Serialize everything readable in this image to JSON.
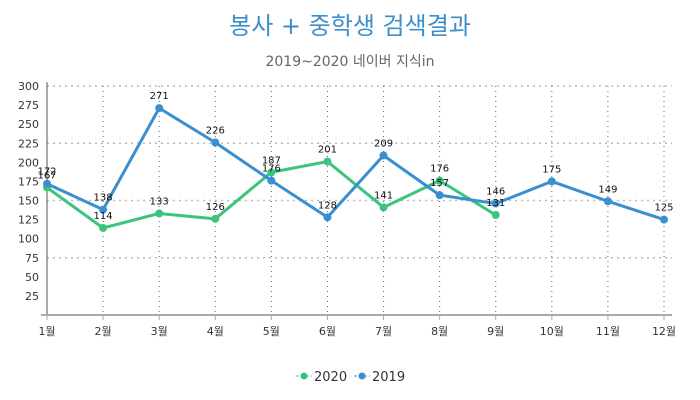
{
  "chart_data": {
    "type": "line",
    "title": "봉사 + 중학생 검색결과",
    "subtitle": "2019~2020 네이버 지식in",
    "xlabel": "",
    "ylabel": "",
    "categories": [
      "1월",
      "2월",
      "3월",
      "4월",
      "5월",
      "6월",
      "7월",
      "8월",
      "9월",
      "10월",
      "11월",
      "12월"
    ],
    "ylim": [
      0,
      300
    ],
    "yticks": [
      25,
      50,
      75,
      100,
      125,
      150,
      175,
      200,
      225,
      250,
      275,
      300
    ],
    "grid": {
      "horizontal": [
        75,
        150,
        225,
        300
      ],
      "vertical": true
    },
    "legend_position": "bottom-center",
    "series": [
      {
        "name": "2020",
        "color": "#3cc47c",
        "values": [
          167,
          114,
          133,
          126,
          187,
          201,
          141,
          176,
          131,
          null,
          null,
          null
        ]
      },
      {
        "name": "2019",
        "color": "#3a8fd0",
        "values": [
          172,
          138,
          271,
          226,
          176,
          128,
          209,
          157,
          146,
          175,
          149,
          125
        ]
      }
    ]
  }
}
